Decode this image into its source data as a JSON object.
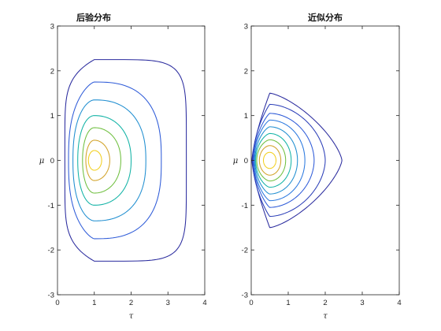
{
  "chart_data": [
    {
      "type": "contour",
      "title": "后验分布",
      "xlabel": "τ",
      "ylabel": "μ",
      "xlim": [
        0,
        4
      ],
      "ylim": [
        -3,
        3
      ],
      "xticks": [
        "0",
        "1",
        "2",
        "3",
        "4"
      ],
      "yticks": [
        "-3",
        "-2",
        "-1",
        "0",
        "1",
        "2",
        "3"
      ],
      "center": [
        1.0,
        0.0
      ],
      "levels": [
        {
          "color": "#2a2b9e",
          "tau_min": 0.2,
          "tau_max": 3.5,
          "mu_half": 2.25,
          "left_exp": 1.0,
          "right_exp": 6.0,
          "v_exp": 6.0
        },
        {
          "color": "#2e5bd8",
          "tau_min": 0.3,
          "tau_max": 2.82,
          "mu_half": 1.75,
          "left_exp": 1.4,
          "right_exp": 2.7,
          "v_exp": 2.7
        },
        {
          "color": "#1f8ed0",
          "tau_min": 0.42,
          "tau_max": 2.4,
          "mu_half": 1.35,
          "left_exp": 1.8,
          "right_exp": 2.4,
          "v_exp": 2.4
        },
        {
          "color": "#13b3a6",
          "tau_min": 0.55,
          "tau_max": 2.0,
          "mu_half": 1.0,
          "left_exp": 2.0,
          "right_exp": 2.2,
          "v_exp": 2.2
        },
        {
          "color": "#6fbf3f",
          "tau_min": 0.68,
          "tau_max": 1.72,
          "mu_half": 0.73,
          "left_exp": 2.0,
          "right_exp": 2.1,
          "v_exp": 2.1
        },
        {
          "color": "#d2a32a",
          "tau_min": 0.77,
          "tau_max": 1.42,
          "mu_half": 0.45,
          "left_exp": 2.0,
          "right_exp": 2.0,
          "v_exp": 2.0
        },
        {
          "color": "#f2cf1d",
          "tau_min": 0.84,
          "tau_max": 1.2,
          "mu_half": 0.22,
          "left_exp": 2.0,
          "right_exp": 2.0,
          "v_exp": 2.0
        }
      ]
    },
    {
      "type": "contour",
      "title": "近似分布",
      "xlabel": "τ",
      "ylabel": "μ",
      "xlim": [
        0,
        4
      ],
      "ylim": [
        -3,
        3
      ],
      "xticks": [
        "0",
        "1",
        "2",
        "3",
        "4"
      ],
      "yticks": [
        "-3",
        "-2",
        "-1",
        "0",
        "1",
        "2",
        "3"
      ],
      "center": [
        0.5,
        0.0
      ],
      "levels": [
        {
          "color": "#2a2b9e",
          "tau_min": 0.02,
          "tau_max": 2.45,
          "mu_half": 1.5,
          "left_exp": 1.0,
          "right_exp": 1.4,
          "v_exp": 1.4
        },
        {
          "color": "#2c3fb8",
          "tau_min": 0.04,
          "tau_max": 2.0,
          "mu_half": 1.25,
          "left_exp": 1.1,
          "right_exp": 1.8,
          "v_exp": 1.8
        },
        {
          "color": "#2e5bd8",
          "tau_min": 0.06,
          "tau_max": 1.7,
          "mu_half": 1.05,
          "left_exp": 1.2,
          "right_exp": 1.9,
          "v_exp": 1.9
        },
        {
          "color": "#2a78df",
          "tau_min": 0.08,
          "tau_max": 1.45,
          "mu_half": 0.9,
          "left_exp": 1.3,
          "right_exp": 2.0,
          "v_exp": 2.0
        },
        {
          "color": "#1f8ed0",
          "tau_min": 0.1,
          "tau_max": 1.25,
          "mu_half": 0.75,
          "left_exp": 1.4,
          "right_exp": 2.0,
          "v_exp": 2.0
        },
        {
          "color": "#13b3a6",
          "tau_min": 0.12,
          "tau_max": 1.08,
          "mu_half": 0.6,
          "left_exp": 1.5,
          "right_exp": 2.0,
          "v_exp": 2.0
        },
        {
          "color": "#6fbf3f",
          "tau_min": 0.15,
          "tau_max": 0.93,
          "mu_half": 0.46,
          "left_exp": 1.6,
          "right_exp": 2.0,
          "v_exp": 2.0
        },
        {
          "color": "#d2a32a",
          "tau_min": 0.22,
          "tau_max": 0.8,
          "mu_half": 0.33,
          "left_exp": 1.8,
          "right_exp": 2.0,
          "v_exp": 2.0
        },
        {
          "color": "#f2cf1d",
          "tau_min": 0.33,
          "tau_max": 0.67,
          "mu_half": 0.18,
          "left_exp": 2.0,
          "right_exp": 2.0,
          "v_exp": 2.0
        }
      ]
    }
  ]
}
